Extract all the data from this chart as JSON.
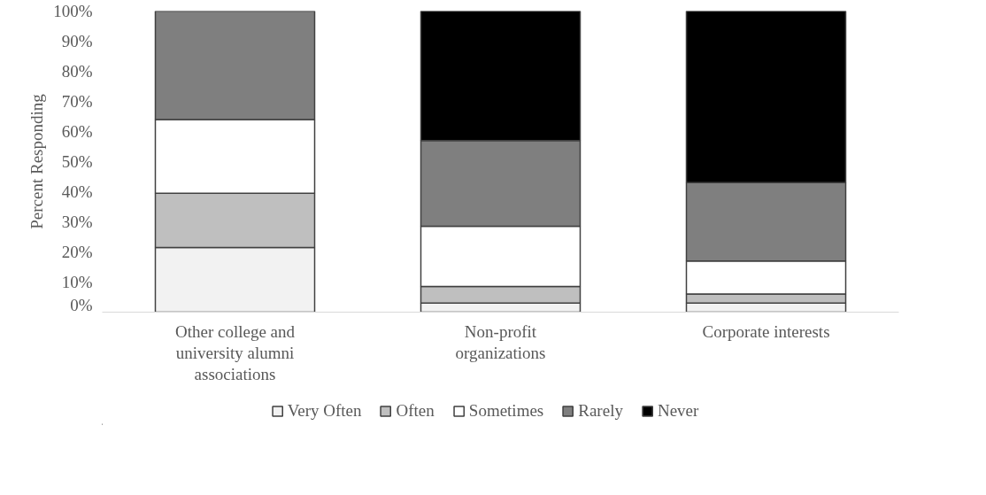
{
  "chart_data": {
    "type": "bar",
    "stacked": true,
    "ylabel": "Percent Responding",
    "categories": [
      "Other college and university alumni associations",
      "Non-profit organizations",
      "Corporate interests"
    ],
    "series": [
      {
        "name": "Very Often",
        "color": "#f2f2f2",
        "values": [
          21.5,
          3,
          3
        ]
      },
      {
        "name": "Often",
        "color": "#bfbfbf",
        "values": [
          18,
          5.5,
          3
        ]
      },
      {
        "name": "Sometimes",
        "color": "#ffffff",
        "values": [
          24.5,
          20,
          11
        ]
      },
      {
        "name": "Rarely",
        "color": "#7f7f7f",
        "values": [
          36,
          28.5,
          26
        ]
      },
      {
        "name": "Never",
        "color": "#000000",
        "values": [
          0,
          43,
          57
        ]
      }
    ],
    "ylim": [
      0,
      100
    ],
    "yticks": [
      {
        "value": 0,
        "label": "0%"
      },
      {
        "value": 10,
        "label": "10%"
      },
      {
        "value": 20,
        "label": "20%"
      },
      {
        "value": 30,
        "label": "30%"
      },
      {
        "value": 40,
        "label": "40%"
      },
      {
        "value": 50,
        "label": "50%"
      },
      {
        "value": 60,
        "label": "60%"
      },
      {
        "value": 70,
        "label": "70%"
      },
      {
        "value": 80,
        "label": "80%"
      },
      {
        "value": 90,
        "label": "90%"
      },
      {
        "value": 100,
        "label": "100%"
      }
    ],
    "grid": false,
    "legend": "bottom"
  }
}
